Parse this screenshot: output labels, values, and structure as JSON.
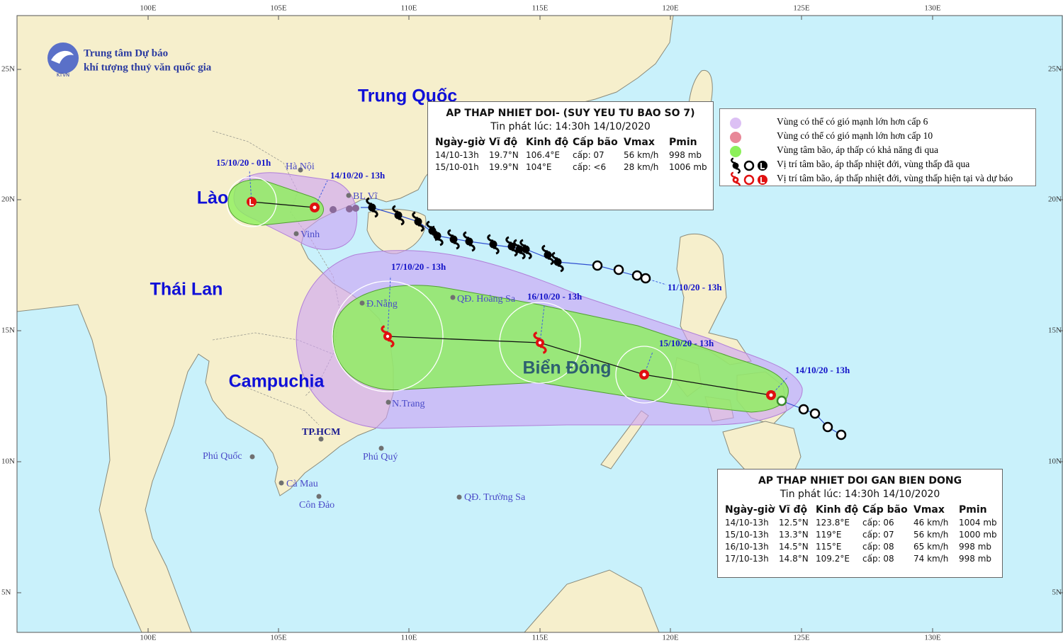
{
  "header": {
    "org_line1": "Trung tâm Dự báo",
    "org_line2": "khí tượng thuỷ văn quốc gia",
    "logo_text": "KTVN"
  },
  "axes": {
    "lon_top": [
      "100E",
      "105E",
      "110E",
      "115E",
      "120E",
      "125E",
      "130E"
    ],
    "lon_bottom": [
      "100E",
      "105E",
      "110E",
      "115E",
      "120E",
      "125E",
      "130E"
    ],
    "lat_left": [
      "25N",
      "20N",
      "15N",
      "10N",
      "5N"
    ],
    "lat_right": [
      "25N",
      "20N",
      "15N",
      "10N",
      "5N"
    ]
  },
  "regions": [
    "Trung Quốc",
    "Lào",
    "Thái Lan",
    "Campuchia",
    "Biển Đông"
  ],
  "places": [
    "Hà Nội",
    "BL Vĩ",
    "Vinh",
    "Đ.Nẵng",
    "QĐ. Hoàng Sa",
    "N.Trang",
    "TP.HCM",
    "Phú Quốc",
    "Phú Quý",
    "Cà Mau",
    "Côn Đảo",
    "QĐ. Trường Sa"
  ],
  "track_labels": [
    "15/10/20 - 01h",
    "14/10/20 - 13h",
    "17/10/20 - 13h",
    "16/10/20 - 13h",
    "15/10/20 - 13h",
    "14/10/20 - 13h",
    "11/10/20 - 13h"
  ],
  "legend": [
    "Vùng có thể có gió mạnh lớn hơn cấp 6",
    "Vùng có thể có gió mạnh lớn hơn cấp 10",
    "Vùng tâm bão, áp thấp có khả năng đi qua",
    "Vị trí tâm bão, áp thấp nhiệt đới, vùng thấp đã qua",
    "Vị trí tâm bão, áp thấp nhiệt đới, vùng thấp hiện tại và dự báo"
  ],
  "bulletin_1": {
    "title": "AP THAP NHIET DOI- (SUY YEU TU BAO SO 7)",
    "issued": "Tin phát lúc: 14:30h 14/10/2020",
    "columns": [
      "Ngày-giờ",
      "Vĩ độ",
      "Kinh độ",
      "Cấp bão",
      "Vmax",
      "Pmin"
    ],
    "rows": [
      [
        "14/10-13h",
        "19.7°N",
        "106.4°E",
        "cấp: 07",
        "56 km/h",
        "998 mb"
      ],
      [
        "15/10-01h",
        "19.9°N",
        "104°E",
        "cấp: <6",
        "28 km/h",
        "1006 mb"
      ]
    ]
  },
  "bulletin_2": {
    "title": "AP THAP NHIET DOI GAN BIEN DONG",
    "issued": "Tin phát lúc: 14:30h 14/10/2020",
    "columns": [
      "Ngày-giờ",
      "Vĩ độ",
      "Kinh độ",
      "Cấp bão",
      "Vmax",
      "Pmin"
    ],
    "rows": [
      [
        "14/10-13h",
        "12.5°N",
        "123.8°E",
        "cấp: 06",
        "46 km/h",
        "1004 mb"
      ],
      [
        "15/10-13h",
        "13.3°N",
        "119°E",
        "cấp: 07",
        "56 km/h",
        "1000 mb"
      ],
      [
        "16/10-13h",
        "14.5°N",
        "115°E",
        "cấp: 08",
        "65 km/h",
        "998 mb"
      ],
      [
        "17/10-13h",
        "14.8°N",
        "109.2°E",
        "cấp: 08",
        "74 km/h",
        "998 mb"
      ]
    ]
  }
}
